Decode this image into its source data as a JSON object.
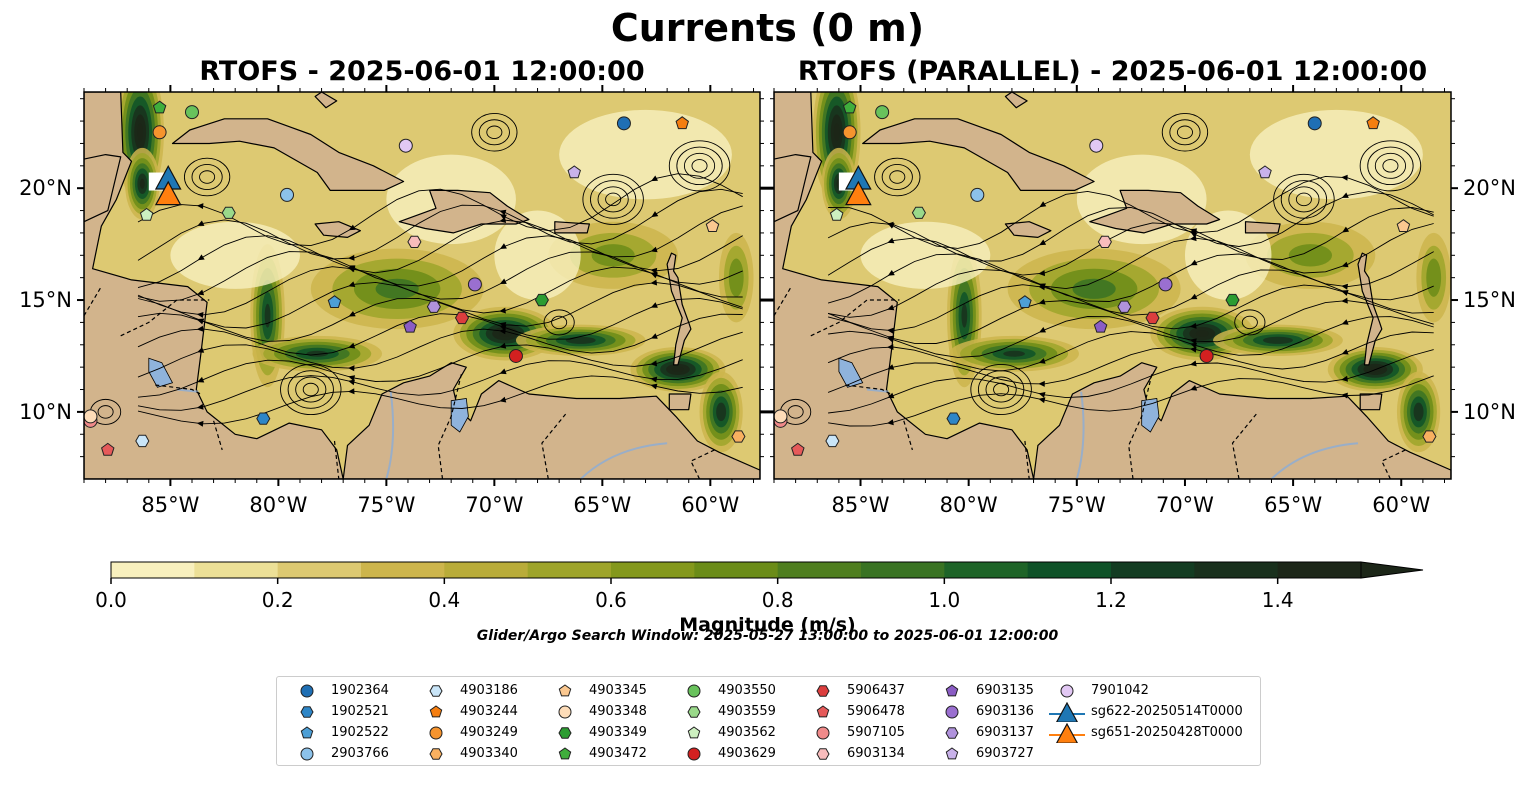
{
  "figure": {
    "suptitle": "Currents (0 m)",
    "panels": [
      {
        "title": "RTOFS - 2025-06-01 12:00:00"
      },
      {
        "title": "RTOFS (PARALLEL) - 2025-06-01 12:00:00"
      }
    ],
    "lon_ticks": [
      "85°W",
      "80°W",
      "75°W",
      "70°W",
      "65°W",
      "60°W"
    ],
    "lat_ticks": [
      "20°N",
      "15°N",
      "10°N"
    ],
    "search_window": "Glider/Argo Search Window: 2025-05-27 13:00:00 to 2025-06-01 12:00:00"
  },
  "colorbar": {
    "label": "Magnitude (m/s)",
    "ticks": [
      "0.0",
      "0.2",
      "0.4",
      "0.6",
      "0.8",
      "1.0",
      "1.2",
      "1.4"
    ],
    "min": 0.0,
    "max": 1.5,
    "step": 0.1,
    "colors": [
      "#f8f0be",
      "#ece097",
      "#ddc972",
      "#cdb54c",
      "#b9ac39",
      "#9ea42a",
      "#84981c",
      "#6b8c18",
      "#4f7e1f",
      "#397323",
      "#1e6428",
      "#0e5228",
      "#133c22",
      "#19301d",
      "#1c2618"
    ],
    "extend": "max"
  },
  "map": {
    "extent": {
      "lon": [
        -89.0,
        -57.7
      ],
      "lat": [
        7.0,
        24.3
      ]
    },
    "land_color": "#d2b48c",
    "lake_color": "#8fb3dc",
    "river_color": "#99aec8"
  },
  "legend": {
    "items": [
      {
        "label": "1902364",
        "marker": "circle",
        "color": "#1f6fb4"
      },
      {
        "label": "1902521",
        "marker": "hexagon",
        "color": "#2e86c7"
      },
      {
        "label": "1902522",
        "marker": "pentagon",
        "color": "#4d9fd6"
      },
      {
        "label": "2903766",
        "marker": "circle",
        "color": "#8cc2ea"
      },
      {
        "label": "4903186",
        "marker": "hexagon",
        "color": "#c9e5f8"
      },
      {
        "label": "4903244",
        "marker": "pentagon",
        "color": "#f57e10"
      },
      {
        "label": "4903249",
        "marker": "circle",
        "color": "#f6942e"
      },
      {
        "label": "4903340",
        "marker": "hexagon",
        "color": "#f8b060"
      },
      {
        "label": "4903345",
        "marker": "pentagon",
        "color": "#fbc890"
      },
      {
        "label": "4903348",
        "marker": "circle",
        "color": "#fddcb8"
      },
      {
        "label": "4903349",
        "marker": "hexagon",
        "color": "#2c9c31"
      },
      {
        "label": "4903472",
        "marker": "pentagon",
        "color": "#3fae3c"
      },
      {
        "label": "4903550",
        "marker": "circle",
        "color": "#68c25c"
      },
      {
        "label": "4903559",
        "marker": "hexagon",
        "color": "#9ad98a"
      },
      {
        "label": "4903562",
        "marker": "pentagon",
        "color": "#cdf0c0"
      },
      {
        "label": "4903629",
        "marker": "circle",
        "color": "#d32020"
      },
      {
        "label": "5906437",
        "marker": "hexagon",
        "color": "#dc3e3e"
      },
      {
        "label": "5906478",
        "marker": "pentagon",
        "color": "#e65a5a"
      },
      {
        "label": "5907105",
        "marker": "circle",
        "color": "#f08a8a"
      },
      {
        "label": "6903134",
        "marker": "hexagon",
        "color": "#f8bcbc"
      },
      {
        "label": "6903135",
        "marker": "pentagon",
        "color": "#8a5cc4"
      },
      {
        "label": "6903136",
        "marker": "circle",
        "color": "#9a6fd0"
      },
      {
        "label": "6903137",
        "marker": "hexagon",
        "color": "#b092dc"
      },
      {
        "label": "6903727",
        "marker": "pentagon",
        "color": "#c9b2ea"
      },
      {
        "label": "7901042",
        "marker": "circle",
        "color": "#e2c8f4"
      },
      {
        "label": "sg622-20250514T0000",
        "marker": "triangle",
        "color": "#1f77b4"
      },
      {
        "label": "sg651-20250428T0000",
        "marker": "triangle",
        "color": "#ff7f0e"
      }
    ]
  },
  "floats": [
    {
      "id": "4903472",
      "lon": -85.5,
      "lat": 23.6
    },
    {
      "id": "4903550",
      "lon": -84.0,
      "lat": 23.4
    },
    {
      "id": "4903249",
      "lon": -85.5,
      "lat": 22.5
    },
    {
      "id": "1902364",
      "lon": -64.0,
      "lat": 22.9
    },
    {
      "id": "4903244",
      "lon": -61.3,
      "lat": 22.9
    },
    {
      "id": "7901042",
      "lon": -74.1,
      "lat": 21.9
    },
    {
      "id": "6903727",
      "lon": -66.3,
      "lat": 20.7
    },
    {
      "id": "2903766",
      "lon": -79.6,
      "lat": 19.7
    },
    {
      "id": "4903562",
      "lon": -86.1,
      "lat": 18.8
    },
    {
      "id": "4903559",
      "lon": -82.3,
      "lat": 18.9
    },
    {
      "id": "4903345",
      "lon": -59.9,
      "lat": 18.3
    },
    {
      "id": "6903134",
      "lon": -73.7,
      "lat": 17.6
    },
    {
      "id": "6903136",
      "lon": -70.9,
      "lat": 15.7
    },
    {
      "id": "4903349",
      "lon": -67.8,
      "lat": 15.0
    },
    {
      "id": "1902522",
      "lon": -77.4,
      "lat": 14.9
    },
    {
      "id": "6903137",
      "lon": -72.8,
      "lat": 14.7
    },
    {
      "id": "5906437",
      "lon": -71.5,
      "lat": 14.2
    },
    {
      "id": "6903135",
      "lon": -73.9,
      "lat": 13.8
    },
    {
      "id": "4903629",
      "lon": -69.0,
      "lat": 12.5
    },
    {
      "id": "1902521",
      "lon": -80.7,
      "lat": 9.7
    },
    {
      "id": "5907105",
      "lon": -88.7,
      "lat": 9.6
    },
    {
      "id": "4903348",
      "lon": -88.7,
      "lat": 9.8
    },
    {
      "id": "4903186",
      "lon": -86.3,
      "lat": 8.7
    },
    {
      "id": "5906478",
      "lon": -87.9,
      "lat": 8.3
    },
    {
      "id": "4903340",
      "lon": -58.7,
      "lat": 8.9
    }
  ],
  "gliders": [
    {
      "id": "sg622-20250514T0000",
      "lon": -85.1,
      "lat": 20.4
    },
    {
      "id": "sg651-20250428T0000",
      "lon": -85.1,
      "lat": 19.7
    }
  ]
}
